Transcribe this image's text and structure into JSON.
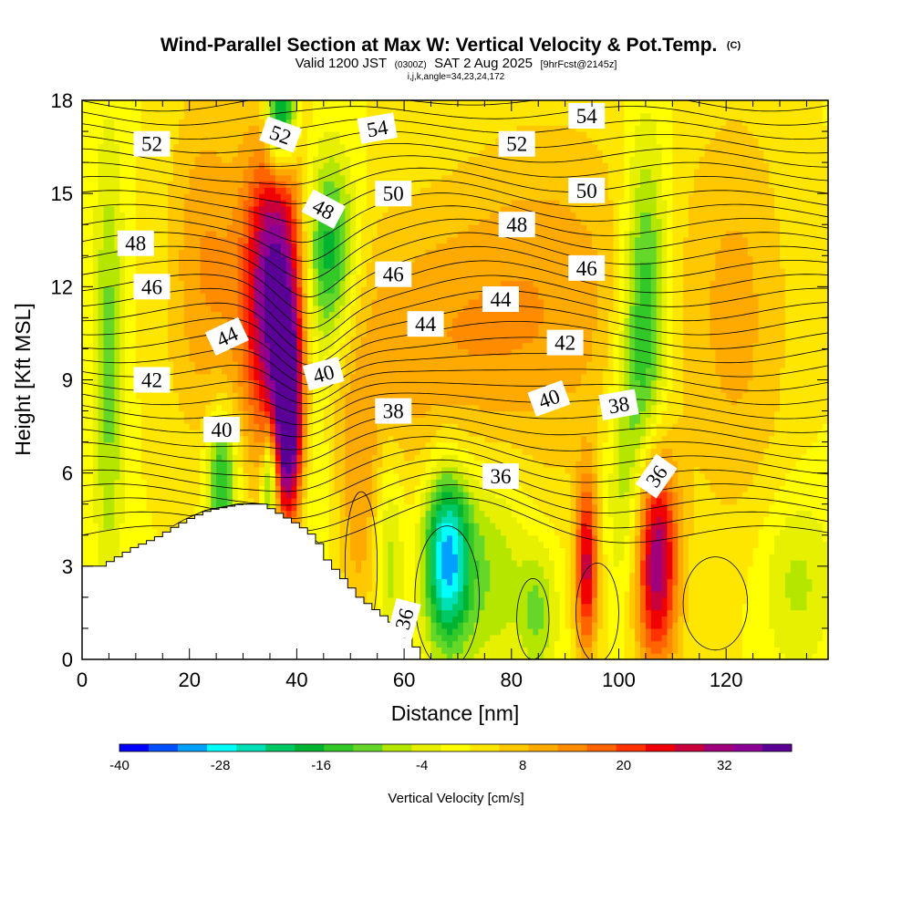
{
  "header": {
    "title": "Wind-Parallel Section at Max W: Vertical Velocity & Pot.Temp.",
    "copyright": "(C)",
    "valid_prefix": "Valid 1200 JST",
    "valid_utc": "(0300Z)",
    "valid_date": "SAT 2 Aug 2025",
    "forecast": "[9hrFcst@2145z]",
    "indices": "i,j,k,angle=34,23,24,172"
  },
  "chart_data": {
    "type": "heatmap",
    "xlabel": "Distance [nm]",
    "ylabel": "Height [Kft MSL]",
    "xlim": [
      0,
      139
    ],
    "ylim": [
      0,
      18
    ],
    "x_ticks": [
      0,
      20,
      40,
      60,
      80,
      100,
      120
    ],
    "y_ticks": [
      0,
      3,
      6,
      9,
      12,
      15,
      18
    ],
    "terrain": [
      {
        "x": 0,
        "top": 3.0
      },
      {
        "x": 3,
        "top": 3.0
      },
      {
        "x": 6,
        "top": 3.3
      },
      {
        "x": 9,
        "top": 3.6
      },
      {
        "x": 13,
        "top": 3.9
      },
      {
        "x": 16,
        "top": 4.2
      },
      {
        "x": 19,
        "top": 4.5
      },
      {
        "x": 23,
        "top": 4.8
      },
      {
        "x": 29,
        "top": 5.0
      },
      {
        "x": 33,
        "top": 5.0
      },
      {
        "x": 37,
        "top": 4.6
      },
      {
        "x": 40,
        "top": 4.3
      },
      {
        "x": 43,
        "top": 3.9
      },
      {
        "x": 45,
        "top": 3.2
      },
      {
        "x": 48,
        "top": 2.6
      },
      {
        "x": 51,
        "top": 2.0
      },
      {
        "x": 54,
        "top": 1.6
      },
      {
        "x": 57,
        "top": 1.2
      },
      {
        "x": 60,
        "top": 0.7
      },
      {
        "x": 61.5,
        "top": 0.4
      },
      {
        "x": 63,
        "top": 0.0
      }
    ],
    "updrafts": [
      {
        "x": 36,
        "z": 12.0,
        "sx": 4.0,
        "sz": 3.5,
        "w": 36
      },
      {
        "x": 38.5,
        "z": 7.5,
        "sx": 1.8,
        "sz": 2.3,
        "w": 34
      },
      {
        "x": 107,
        "z": 3.3,
        "sx": 2.8,
        "sz": 2.5,
        "w": 33
      },
      {
        "x": 94,
        "z": 3.0,
        "sx": 1.5,
        "sz": 2.0,
        "w": 26
      },
      {
        "x": 62,
        "z": 10.0,
        "sx": 20,
        "sz": 3.2,
        "w": 9
      },
      {
        "x": 88,
        "z": 12.5,
        "sx": 14,
        "sz": 4.0,
        "w": 7
      },
      {
        "x": 122,
        "z": 11.0,
        "sx": 7,
        "sz": 5.0,
        "w": 8
      },
      {
        "x": 23,
        "z": 13.0,
        "sx": 5,
        "sz": 4.0,
        "w": 10
      },
      {
        "x": 52,
        "z": 4.5,
        "sx": 3,
        "sz": 3.0,
        "w": 8
      }
    ],
    "downdrafts": [
      {
        "x": 68,
        "z": 3.3,
        "sx": 3.0,
        "sz": 2.0,
        "w": -32
      },
      {
        "x": 46,
        "z": 13.0,
        "sx": 3.5,
        "sz": 2.2,
        "w": -22
      },
      {
        "x": 37,
        "z": 17.5,
        "sx": 2.0,
        "sz": 1.3,
        "w": -30
      },
      {
        "x": 26,
        "z": 5.8,
        "sx": 2.0,
        "sz": 1.5,
        "w": -20
      },
      {
        "x": 35,
        "z": 5.7,
        "sx": 1.0,
        "sz": 1.2,
        "w": -22
      },
      {
        "x": 5,
        "z": 9.5,
        "sx": 2.0,
        "sz": 5.0,
        "w": -12
      },
      {
        "x": 105,
        "z": 11.0,
        "sx": 3.0,
        "sz": 4.0,
        "w": -20
      },
      {
        "x": 76,
        "z": 3.0,
        "sx": 5.0,
        "sz": 2.5,
        "w": -10
      },
      {
        "x": 85,
        "z": 1.5,
        "sx": 2.5,
        "sz": 1.5,
        "w": -10
      },
      {
        "x": 101,
        "z": 6.0,
        "sx": 2.5,
        "sz": 3.0,
        "w": -8
      },
      {
        "x": 57,
        "z": 3.5,
        "sx": 2.0,
        "sz": 2.5,
        "w": -10
      },
      {
        "x": 133,
        "z": 2.5,
        "sx": 5.0,
        "sz": 2.0,
        "w": -8
      },
      {
        "x": 43,
        "z": 8.0,
        "sx": 2.5,
        "sz": 4.0,
        "w": -8
      }
    ],
    "contour_labels": [
      {
        "text": "52",
        "x": 13,
        "z": 16.6,
        "angle": 0
      },
      {
        "text": "54",
        "x": 55,
        "z": 17.1,
        "angle": -10
      },
      {
        "text": "54",
        "x": 94,
        "z": 17.5,
        "angle": 0
      },
      {
        "text": "52",
        "x": 37,
        "z": 16.9,
        "angle": 20
      },
      {
        "text": "52",
        "x": 81,
        "z": 16.6,
        "angle": 0
      },
      {
        "text": "48",
        "x": 10,
        "z": 13.4,
        "angle": 0
      },
      {
        "text": "50",
        "x": 58,
        "z": 15.0,
        "angle": 0
      },
      {
        "text": "50",
        "x": 94,
        "z": 15.1,
        "angle": 0
      },
      {
        "text": "48",
        "x": 45,
        "z": 14.5,
        "angle": 28
      },
      {
        "text": "48",
        "x": 81,
        "z": 14.0,
        "angle": 0
      },
      {
        "text": "46",
        "x": 13,
        "z": 12.0,
        "angle": 0
      },
      {
        "text": "46",
        "x": 58,
        "z": 12.4,
        "angle": 0
      },
      {
        "text": "46",
        "x": 94,
        "z": 12.6,
        "angle": 0
      },
      {
        "text": "44",
        "x": 78,
        "z": 11.6,
        "angle": 0
      },
      {
        "text": "44",
        "x": 64,
        "z": 10.8,
        "angle": 0
      },
      {
        "text": "44",
        "x": 27,
        "z": 10.4,
        "angle": -25
      },
      {
        "text": "42",
        "x": 90,
        "z": 10.2,
        "angle": 0
      },
      {
        "text": "42",
        "x": 13,
        "z": 9.0,
        "angle": 0
      },
      {
        "text": "40",
        "x": 45,
        "z": 9.2,
        "angle": -15
      },
      {
        "text": "40",
        "x": 87,
        "z": 8.4,
        "angle": -20
      },
      {
        "text": "38",
        "x": 58,
        "z": 8.0,
        "angle": 0
      },
      {
        "text": "38",
        "x": 100,
        "z": 8.2,
        "angle": -10
      },
      {
        "text": "40",
        "x": 26,
        "z": 7.4,
        "angle": 0
      },
      {
        "text": "36",
        "x": 78,
        "z": 5.9,
        "angle": 0
      },
      {
        "text": "36",
        "x": 107,
        "z": 5.9,
        "angle": -55
      },
      {
        "text": "36",
        "x": 60,
        "z": 1.3,
        "angle": -75
      }
    ],
    "colorbar": {
      "label": "Vertical Velocity [cm/s]",
      "min": -40,
      "max": 40,
      "tick_labels": [
        "-40",
        "-28",
        "-16",
        "-4",
        "8",
        "20",
        "32"
      ],
      "colors": [
        "#0000ff",
        "#0050ff",
        "#00a0ff",
        "#00ffff",
        "#00e0b4",
        "#00c864",
        "#00b432",
        "#32c828",
        "#64d728",
        "#b4e600",
        "#e6f000",
        "#ffff00",
        "#ffe600",
        "#ffc800",
        "#ffaa00",
        "#ff8c00",
        "#ff6400",
        "#ff3200",
        "#f00000",
        "#c8003c",
        "#a0007a",
        "#8c0096",
        "#5a0096"
      ]
    }
  }
}
